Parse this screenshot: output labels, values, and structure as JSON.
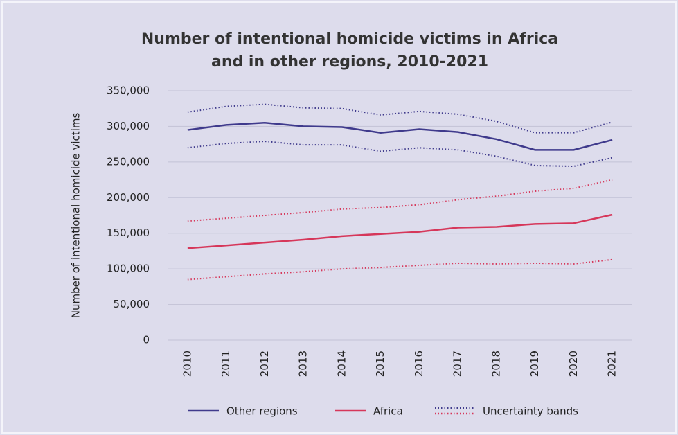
{
  "chart_data": {
    "type": "line",
    "title": [
      "Number of intentional homicide victims in Africa",
      "and in other regions, 2010-2021"
    ],
    "y_label": "Number of intentional homicide victims",
    "categories": [
      "2010",
      "2011",
      "2012",
      "2013",
      "2014",
      "2015",
      "2016",
      "2017",
      "2018",
      "2019",
      "2020",
      "2021"
    ],
    "ylim": [
      0,
      350000
    ],
    "yticks": [
      0,
      {
        "value": 50000,
        "label": "50,000"
      },
      {
        "value": 100000,
        "label": "100,000"
      },
      {
        "value": 150000,
        "label": "150,000"
      },
      {
        "value": 200000,
        "label": "200,000"
      },
      {
        "value": 250000,
        "label": "250,000"
      },
      {
        "value": 300000,
        "label": "300,000"
      },
      {
        "value": 350000,
        "label": "350,000"
      }
    ],
    "grid": true,
    "series": [
      {
        "name": "Other regions",
        "color": "#3f3a8c",
        "values": [
          295000,
          302000,
          305000,
          300000,
          299000,
          291000,
          296000,
          292000,
          282000,
          267000,
          267000,
          281000
        ]
      },
      {
        "name": "Africa",
        "color": "#d6375a",
        "values": [
          129000,
          133000,
          137000,
          141000,
          146000,
          149000,
          152000,
          158000,
          159000,
          163000,
          164000,
          176000
        ]
      }
    ],
    "bands": {
      "name": "Uncertainty bands",
      "series": [
        {
          "color": "#3f3a8c",
          "values": [
            320000,
            328000,
            331000,
            326000,
            325000,
            316000,
            321000,
            317000,
            307000,
            291000,
            291000,
            306000
          ]
        },
        {
          "color": "#3f3a8c",
          "values": [
            270000,
            276000,
            279000,
            274000,
            274000,
            265000,
            270000,
            267000,
            258000,
            245000,
            244000,
            256000
          ]
        },
        {
          "color": "#d6375a",
          "values": [
            167000,
            171000,
            175000,
            179000,
            184000,
            186000,
            190000,
            197000,
            202000,
            209000,
            213000,
            225000
          ]
        },
        {
          "color": "#d6375a",
          "values": [
            85000,
            89000,
            93000,
            96000,
            100000,
            102000,
            105000,
            108000,
            107000,
            108000,
            107000,
            113000
          ]
        }
      ]
    }
  }
}
